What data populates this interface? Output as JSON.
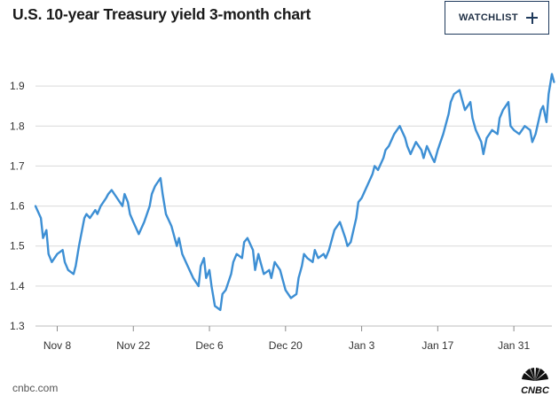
{
  "header": {
    "title": "U.S. 10-year Treasury yield 3-month chart",
    "watchlist_label": "WATCHLIST"
  },
  "footer": {
    "source": "cnbc.com",
    "logo_text": "CNBC"
  },
  "colors": {
    "line": "#3d8fd4",
    "grid": "#d9d9d9",
    "axis_text": "#333333",
    "button_border": "#1f3a5c"
  },
  "icons": {
    "watchlist_add": "plus-icon",
    "logo": "nbc-peacock-icon"
  },
  "chart_data": {
    "type": "line",
    "title": "U.S. 10-year Treasury yield 3-month chart",
    "xlabel": "",
    "ylabel": "",
    "ylim": [
      1.3,
      2.0
    ],
    "yticks": [
      1.3,
      1.4,
      1.5,
      1.6,
      1.7,
      1.8,
      1.9
    ],
    "ytick_labels": [
      "1.3",
      "1.4",
      "1.5",
      "1.6",
      "1.7",
      "1.8",
      "1.9"
    ],
    "xlim": [
      "2019-11-04",
      "2020-02-07"
    ],
    "xticks": [
      "2019-11-08",
      "2019-11-22",
      "2019-12-06",
      "2019-12-20",
      "2020-01-03",
      "2020-01-17",
      "2020-01-31"
    ],
    "xtick_labels": [
      "Nov 8",
      "Nov 22",
      "Dec 6",
      "Dec 20",
      "Jan 3",
      "Jan 17",
      "Jan 31"
    ],
    "grid": true,
    "legend": "none",
    "series": [
      {
        "points": [
          [
            "2019-11-04",
            1.6
          ],
          [
            "2019-11-05",
            1.57
          ],
          [
            "2019-11-05",
            1.52
          ],
          [
            "2019-11-06",
            1.54
          ],
          [
            "2019-11-06",
            1.48
          ],
          [
            "2019-11-07",
            1.46
          ],
          [
            "2019-11-08",
            1.48
          ],
          [
            "2019-11-09",
            1.49
          ],
          [
            "2019-11-09",
            1.46
          ],
          [
            "2019-11-10",
            1.44
          ],
          [
            "2019-11-11",
            1.43
          ],
          [
            "2019-11-11",
            1.45
          ],
          [
            "2019-11-12",
            1.5
          ],
          [
            "2019-11-13",
            1.57
          ],
          [
            "2019-11-13",
            1.58
          ],
          [
            "2019-11-14",
            1.57
          ],
          [
            "2019-11-15",
            1.59
          ],
          [
            "2019-11-15",
            1.58
          ],
          [
            "2019-11-16",
            1.6
          ],
          [
            "2019-11-17",
            1.62
          ],
          [
            "2019-11-17",
            1.63
          ],
          [
            "2019-11-18",
            1.64
          ],
          [
            "2019-11-19",
            1.62
          ],
          [
            "2019-11-20",
            1.6
          ],
          [
            "2019-11-20",
            1.63
          ],
          [
            "2019-11-21",
            1.61
          ],
          [
            "2019-11-21",
            1.58
          ],
          [
            "2019-11-22",
            1.56
          ],
          [
            "2019-11-23",
            1.53
          ],
          [
            "2019-11-24",
            1.56
          ],
          [
            "2019-11-25",
            1.6
          ],
          [
            "2019-11-25",
            1.63
          ],
          [
            "2019-11-26",
            1.65
          ],
          [
            "2019-11-27",
            1.67
          ],
          [
            "2019-11-27",
            1.63
          ],
          [
            "2019-11-28",
            1.58
          ],
          [
            "2019-11-29",
            1.55
          ],
          [
            "2019-11-30",
            1.5
          ],
          [
            "2019-11-30",
            1.52
          ],
          [
            "2019-12-01",
            1.48
          ],
          [
            "2019-12-02",
            1.45
          ],
          [
            "2019-12-03",
            1.42
          ],
          [
            "2019-12-04",
            1.4
          ],
          [
            "2019-12-04",
            1.45
          ],
          [
            "2019-12-05",
            1.47
          ],
          [
            "2019-12-05",
            1.42
          ],
          [
            "2019-12-06",
            1.44
          ],
          [
            "2019-12-06",
            1.4
          ],
          [
            "2019-12-07",
            1.35
          ],
          [
            "2019-12-08",
            1.34
          ],
          [
            "2019-12-08",
            1.38
          ],
          [
            "2019-12-09",
            1.39
          ],
          [
            "2019-12-10",
            1.43
          ],
          [
            "2019-12-10",
            1.46
          ],
          [
            "2019-12-11",
            1.48
          ],
          [
            "2019-12-12",
            1.47
          ],
          [
            "2019-12-12",
            1.51
          ],
          [
            "2019-12-13",
            1.52
          ],
          [
            "2019-12-14",
            1.49
          ],
          [
            "2019-12-14",
            1.44
          ],
          [
            "2019-12-15",
            1.48
          ],
          [
            "2019-12-15",
            1.46
          ],
          [
            "2019-12-16",
            1.43
          ],
          [
            "2019-12-17",
            1.44
          ],
          [
            "2019-12-17",
            1.42
          ],
          [
            "2019-12-18",
            1.46
          ],
          [
            "2019-12-19",
            1.44
          ],
          [
            "2019-12-19",
            1.42
          ],
          [
            "2019-12-20",
            1.39
          ],
          [
            "2019-12-21",
            1.37
          ],
          [
            "2019-12-22",
            1.38
          ],
          [
            "2019-12-22",
            1.42
          ],
          [
            "2019-12-23",
            1.45
          ],
          [
            "2019-12-23",
            1.48
          ],
          [
            "2019-12-24",
            1.47
          ],
          [
            "2019-12-25",
            1.46
          ],
          [
            "2019-12-25",
            1.49
          ],
          [
            "2019-12-26",
            1.47
          ],
          [
            "2019-12-27",
            1.48
          ],
          [
            "2019-12-27",
            1.47
          ],
          [
            "2019-12-28",
            1.49
          ],
          [
            "2019-12-29",
            1.54
          ],
          [
            "2019-12-30",
            1.56
          ],
          [
            "2019-12-31",
            1.52
          ],
          [
            "2019-12-31",
            1.5
          ],
          [
            "2020-01-01",
            1.51
          ],
          [
            "2020-01-02",
            1.57
          ],
          [
            "2020-01-02",
            1.61
          ],
          [
            "2020-01-03",
            1.62
          ],
          [
            "2020-01-04",
            1.65
          ],
          [
            "2020-01-05",
            1.68
          ],
          [
            "2020-01-05",
            1.7
          ],
          [
            "2020-01-06",
            1.69
          ],
          [
            "2020-01-07",
            1.72
          ],
          [
            "2020-01-07",
            1.74
          ],
          [
            "2020-01-08",
            1.75
          ],
          [
            "2020-01-09",
            1.78
          ],
          [
            "2020-01-10",
            1.8
          ],
          [
            "2020-01-11",
            1.77
          ],
          [
            "2020-01-11",
            1.75
          ],
          [
            "2020-01-12",
            1.73
          ],
          [
            "2020-01-13",
            1.76
          ],
          [
            "2020-01-14",
            1.74
          ],
          [
            "2020-01-14",
            1.72
          ],
          [
            "2020-01-15",
            1.75
          ],
          [
            "2020-01-16",
            1.72
          ],
          [
            "2020-01-16",
            1.71
          ],
          [
            "2020-01-17",
            1.74
          ],
          [
            "2020-01-18",
            1.78
          ],
          [
            "2020-01-19",
            1.83
          ],
          [
            "2020-01-19",
            1.86
          ],
          [
            "2020-01-20",
            1.88
          ],
          [
            "2020-01-21",
            1.89
          ],
          [
            "2020-01-21",
            1.87
          ],
          [
            "2020-01-22",
            1.84
          ],
          [
            "2020-01-23",
            1.86
          ],
          [
            "2020-01-23",
            1.82
          ],
          [
            "2020-01-24",
            1.79
          ],
          [
            "2020-01-25",
            1.76
          ],
          [
            "2020-01-25",
            1.73
          ],
          [
            "2020-01-26",
            1.77
          ],
          [
            "2020-01-27",
            1.79
          ],
          [
            "2020-01-28",
            1.78
          ],
          [
            "2020-01-28",
            1.82
          ],
          [
            "2020-01-29",
            1.84
          ],
          [
            "2020-01-30",
            1.86
          ],
          [
            "2020-01-30",
            1.8
          ],
          [
            "2020-01-31",
            1.79
          ],
          [
            "2020-02-01",
            1.78
          ],
          [
            "2020-02-02",
            1.8
          ],
          [
            "2020-02-03",
            1.79
          ],
          [
            "2020-02-03",
            1.76
          ],
          [
            "2020-02-04",
            1.78
          ],
          [
            "2020-02-05",
            1.84
          ],
          [
            "2020-02-05",
            1.85
          ],
          [
            "2020-02-06",
            1.81
          ],
          [
            "2020-02-06",
            1.88
          ],
          [
            "2020-02-07",
            1.93
          ],
          [
            "2020-02-07",
            1.91
          ]
        ]
      }
    ]
  }
}
